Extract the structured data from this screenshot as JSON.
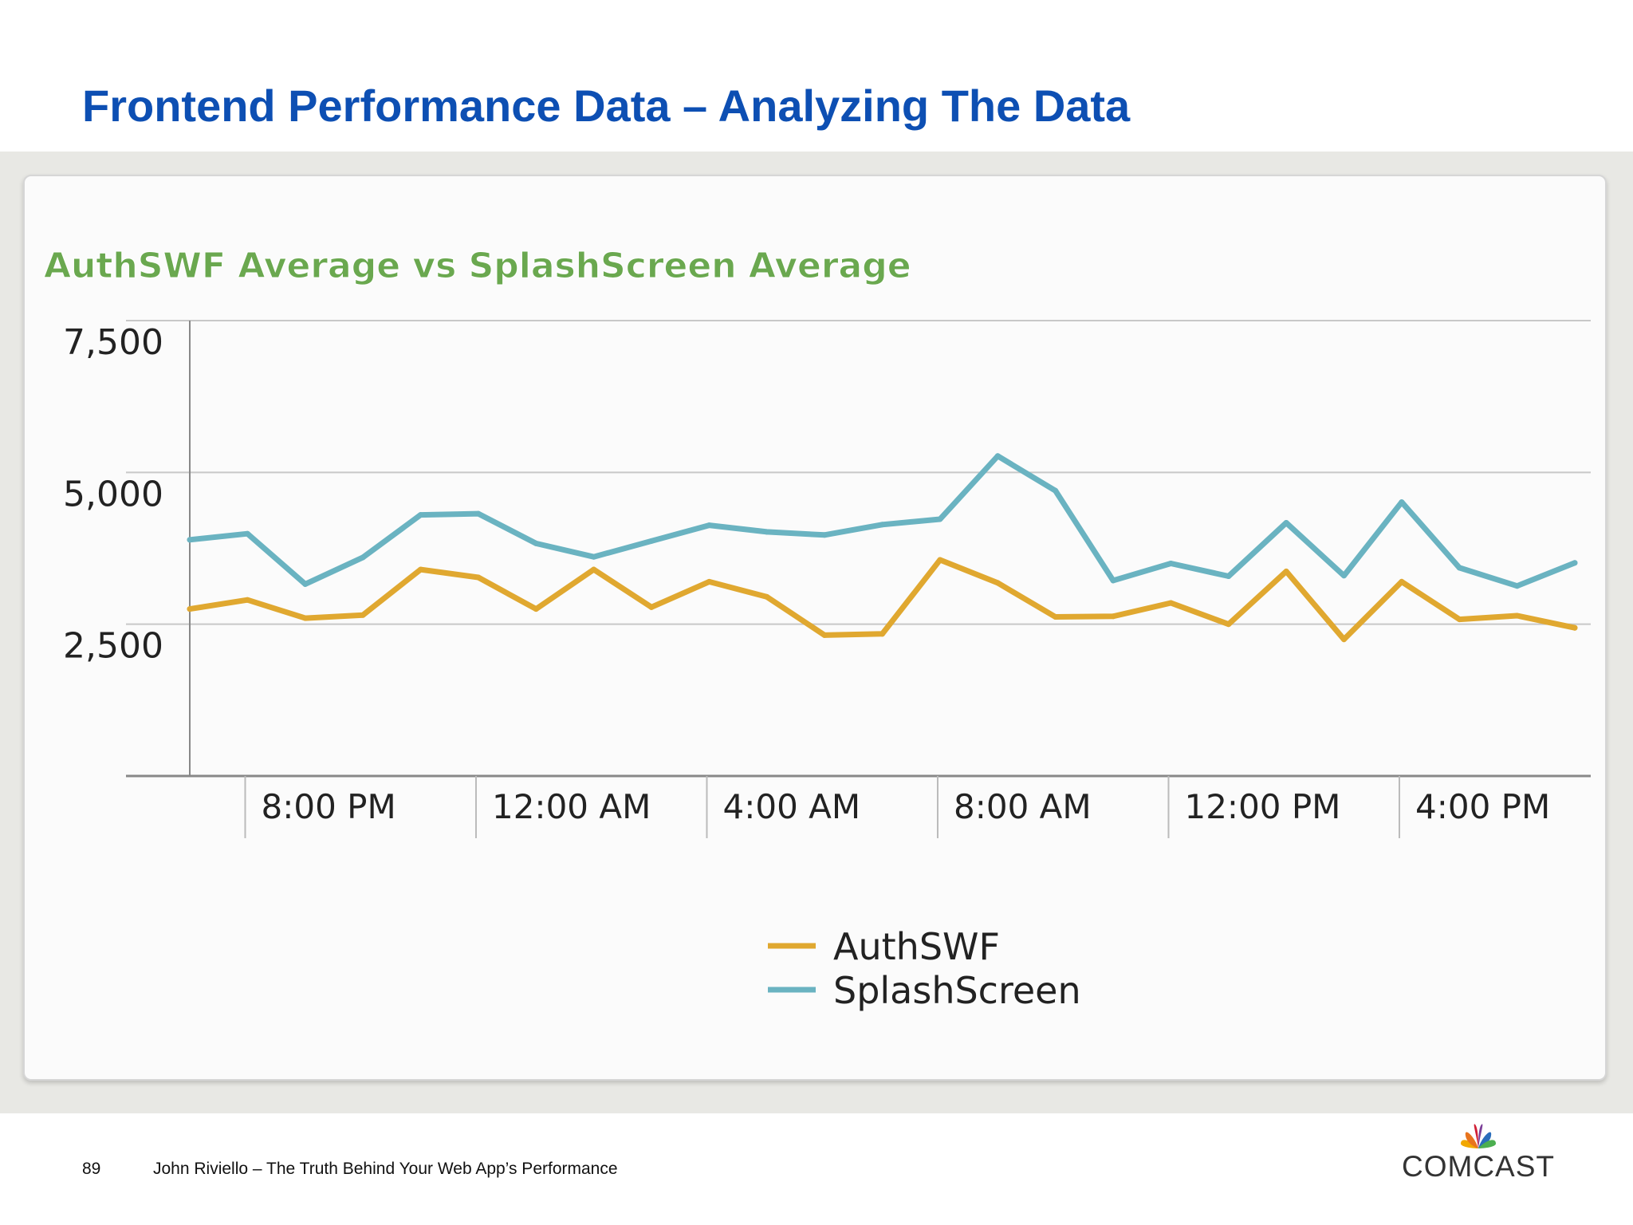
{
  "slide": {
    "title": "Frontend Performance Data – Analyzing The Data",
    "page_number": "89",
    "footer_text": "John Riviello – The Truth Behind Your Web App’s Performance",
    "logo_text": "COMCAST"
  },
  "chart_data": {
    "type": "line",
    "title": "AuthSWF Average vs SplashScreen Average",
    "title_color": "#6aa84f",
    "xlabel": "",
    "ylabel": "",
    "ylim": [
      0,
      7500
    ],
    "yticks": [
      2500,
      5000,
      7500
    ],
    "ytick_labels": [
      "2,500",
      "5,000",
      "7,500"
    ],
    "x_tick_labels": [
      "8:00 PM",
      "12:00 AM",
      "4:00 AM",
      "8:00 AM",
      "12:00 PM",
      "4:00 PM"
    ],
    "x_tick_positions": [
      1,
      5,
      9,
      13,
      17,
      21
    ],
    "x": [
      0,
      1,
      2,
      3,
      4,
      5,
      6,
      7,
      8,
      9,
      10,
      11,
      12,
      13,
      14,
      15,
      16,
      17,
      18,
      19,
      20,
      21,
      22,
      23,
      24
    ],
    "xlim": [
      0,
      24
    ],
    "grid": true,
    "legend_position": "bottom",
    "series": [
      {
        "name": "AuthSWF",
        "color": "#e0a830",
        "values": [
          2750,
          2900,
          2600,
          2650,
          3400,
          3270,
          2750,
          3400,
          2780,
          3200,
          2950,
          2320,
          2340,
          3560,
          3180,
          2620,
          2630,
          2850,
          2500,
          3370,
          2250,
          3200,
          2580,
          2640,
          2440
        ]
      },
      {
        "name": "SplashScreen",
        "color": "#6ab3c1",
        "values": [
          3890,
          3990,
          3160,
          3600,
          4300,
          4320,
          3830,
          3610,
          3870,
          4130,
          4020,
          3970,
          4140,
          4230,
          5270,
          4700,
          3220,
          3500,
          3290,
          4170,
          3300,
          4510,
          3430,
          3130,
          3510
        ]
      }
    ]
  }
}
